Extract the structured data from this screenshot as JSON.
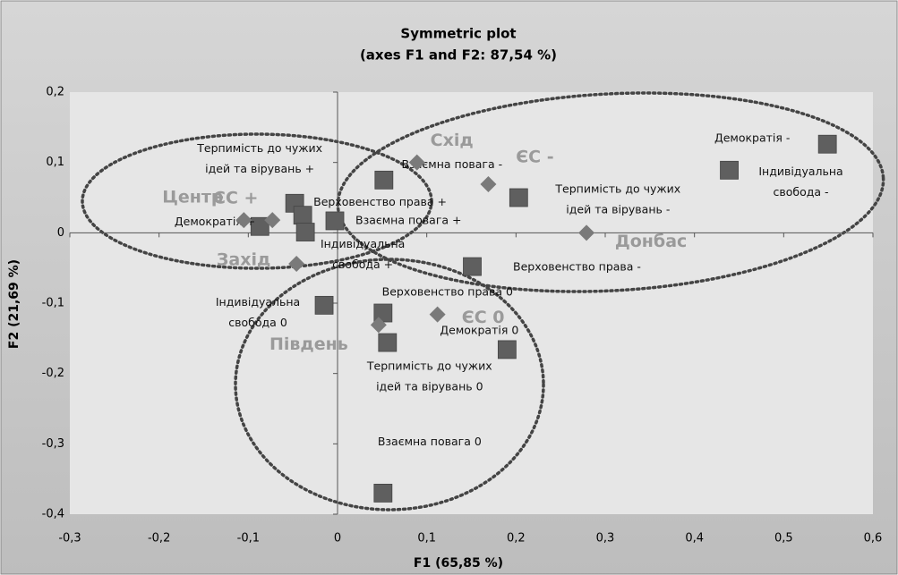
{
  "chart_data": {
    "type": "scatter",
    "title": "Symmetric plot",
    "subtitle": "(axes F1 and F2: 87,54 %)",
    "x_label": "F1 (65,85 %)",
    "y_label": "F2 (21,69 %)",
    "xlim": [
      -0.3,
      0.6
    ],
    "ylim": [
      -0.4,
      0.2
    ],
    "xticks": [
      {
        "value": -0.3,
        "label": "-0,3"
      },
      {
        "value": -0.2,
        "label": "-0,2"
      },
      {
        "value": -0.1,
        "label": "-0,1"
      },
      0,
      {
        "value": 0.1,
        "label": "0,1"
      },
      {
        "value": 0.2,
        "label": "0,2"
      },
      {
        "value": 0.3,
        "label": "0,3"
      },
      {
        "value": 0.4,
        "label": "0,4"
      },
      {
        "value": 0.5,
        "label": "0,5"
      },
      {
        "value": 0.6,
        "label": "0,6"
      }
    ],
    "yticks": [
      {
        "value": -0.4,
        "label": "-0,4"
      },
      {
        "value": -0.3,
        "label": "-0,3"
      },
      {
        "value": -0.2,
        "label": "-0,2"
      },
      {
        "value": -0.1,
        "label": "-0,1"
      },
      0,
      {
        "value": 0.1,
        "label": "0,1"
      },
      {
        "value": 0.2,
        "label": "0,2"
      }
    ],
    "grid": false,
    "series": [
      {
        "marker": "square",
        "color": "#5f5f5f",
        "label_color": "#111111",
        "x": [
          -0.087,
          -0.048,
          -0.039,
          -0.003,
          -0.036,
          -0.015,
          0.051,
          0.056,
          0.19,
          0.051,
          0.549,
          0.439,
          0.203,
          0.151,
          0.052
        ],
        "y": [
          0.009,
          0.042,
          0.025,
          0.017,
          0.001,
          -0.103,
          -0.114,
          -0.156,
          -0.166,
          -0.37,
          0.126,
          0.089,
          0.05,
          -0.048,
          0.075
        ],
        "labels": [
          [
            "Демократія +"
          ],
          [
            "Терпимість до чужих",
            "ідей та вірувань +"
          ],
          [
            "Верховенство права +"
          ],
          [
            "Взаємна повага +"
          ],
          [
            "Індивідуальна",
            "свобода +"
          ],
          [
            "Індивідуальна",
            "свобода 0"
          ],
          [
            "Верховенство права 0"
          ],
          [
            "Терпимість до чужих",
            "ідей та вірувань 0"
          ],
          [
            "Демократія 0"
          ],
          [
            "Взаємна повага 0"
          ],
          [
            "Демократія -"
          ],
          [
            "Індивідуальна",
            "свобода -"
          ],
          [
            "Терпимість до чужих",
            "ідей та вірувань -"
          ],
          [
            "Верховенство права -"
          ],
          [
            "Взаємна повага -"
          ]
        ]
      },
      {
        "marker": "diamond",
        "color": "#7a7a7a",
        "label_color": "#9a9a9a",
        "x": [
          -0.105,
          -0.073,
          -0.046,
          0.046,
          0.112,
          0.279,
          0.089,
          0.169
        ],
        "y": [
          0.018,
          0.018,
          -0.044,
          -0.131,
          -0.116,
          0,
          0.1,
          0.069
        ],
        "labels": [
          [
            "Центр"
          ],
          [
            "ЄС +"
          ],
          [
            "Захід"
          ],
          [
            "Південь"
          ],
          [
            "ЄС 0"
          ],
          [
            "Донбас"
          ],
          [
            "Схід"
          ],
          [
            "ЄС -"
          ]
        ]
      }
    ]
  }
}
